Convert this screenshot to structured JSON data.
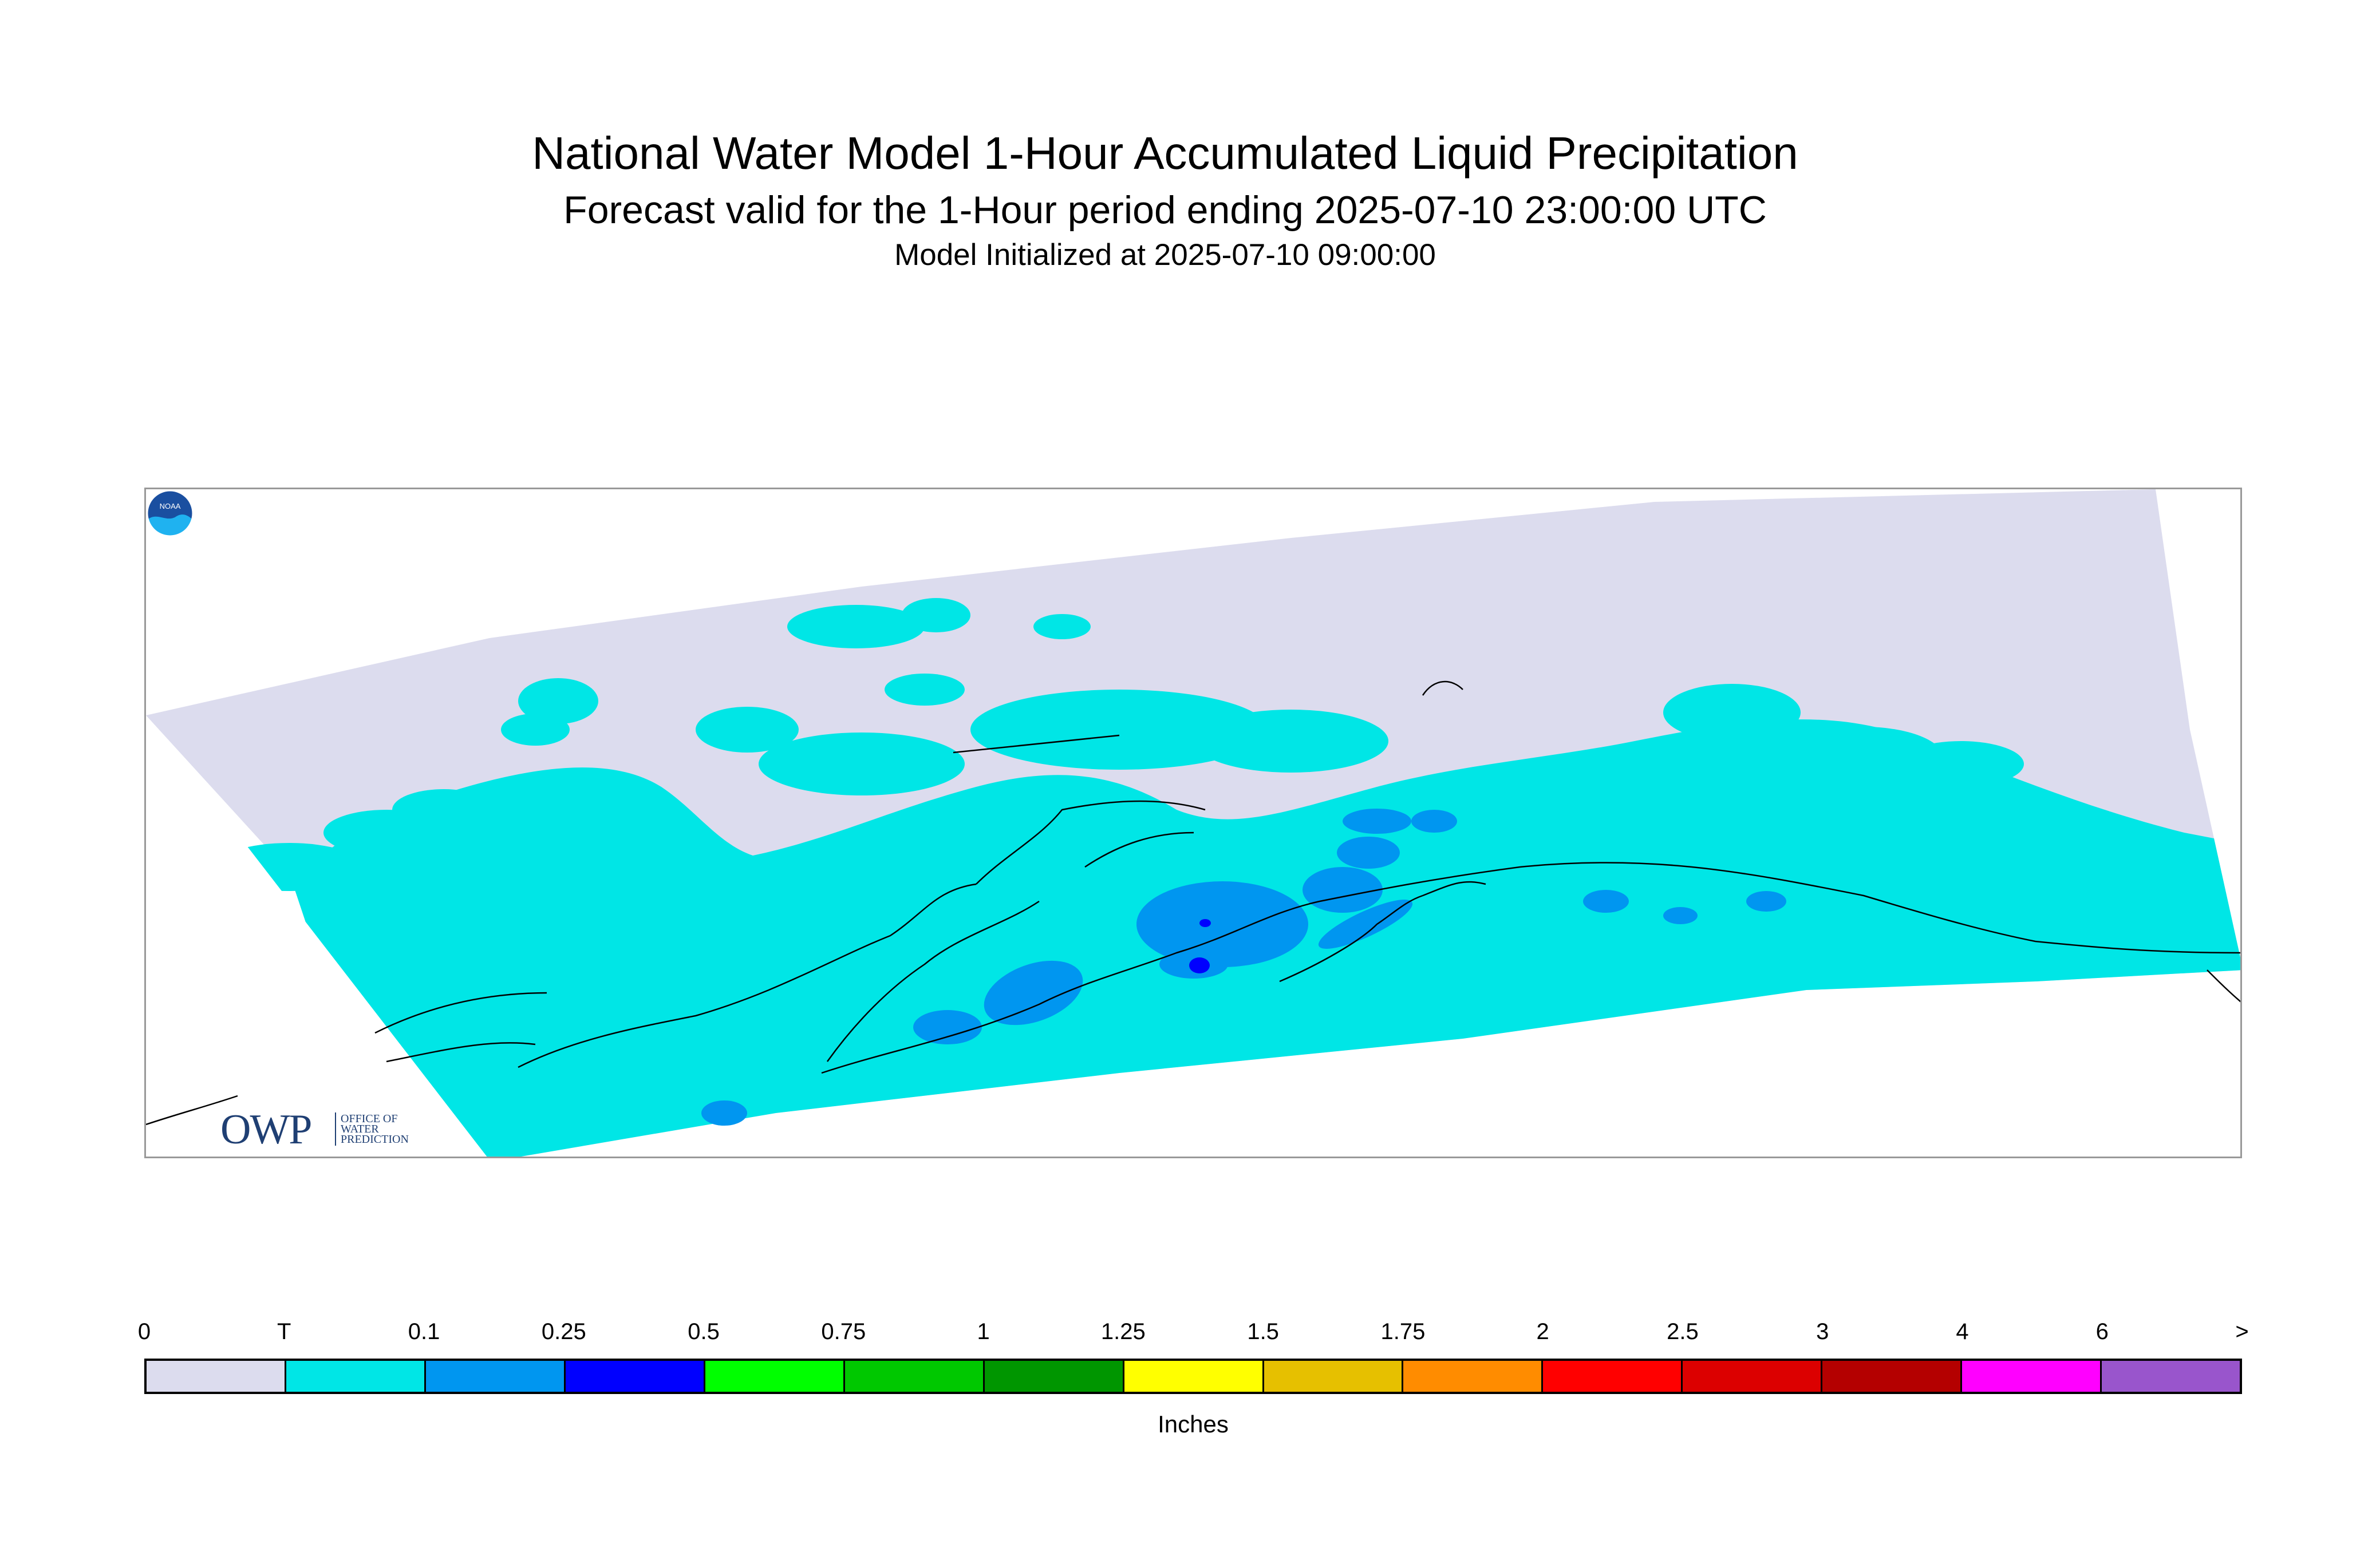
{
  "title": "National Water Model 1-Hour Accumulated Liquid Precipitation",
  "subtitle": "Forecast valid for the 1-Hour period ending 2025-07-10 23:00:00 UTC",
  "init_line": "Model Initialized at 2025-07-10 09:00:00",
  "map": {
    "region_color_no_precip": "#dcdcee",
    "region_color_trace": "#00e6e6",
    "region_color_0_1": "#0096f0",
    "region_color_0_25": "#0000ff",
    "coastline_color": "#000000",
    "owp_logo": {
      "letters": "OWP",
      "text_line1": "OFFICE OF",
      "text_line2": "WATER",
      "text_line3": "PREDICTION"
    },
    "noaa_logo": {
      "letters": "NOAA",
      "icon": "noaa-logo-icon"
    }
  },
  "legend": {
    "units_label": "Inches",
    "tick_labels": [
      "0",
      "T",
      "0.1",
      "0.25",
      "0.5",
      "0.75",
      "1",
      "1.25",
      "1.5",
      "1.75",
      "2",
      "2.5",
      "3",
      "4",
      "6",
      ">"
    ],
    "colors": [
      "#dcdcee",
      "#00e6e6",
      "#0096f0",
      "#0000ff",
      "#00ff00",
      "#00c800",
      "#009600",
      "#ffff00",
      "#e6c000",
      "#ff8c00",
      "#ff0000",
      "#dc0000",
      "#b40000",
      "#ff00ff",
      "#9955cc"
    ]
  }
}
